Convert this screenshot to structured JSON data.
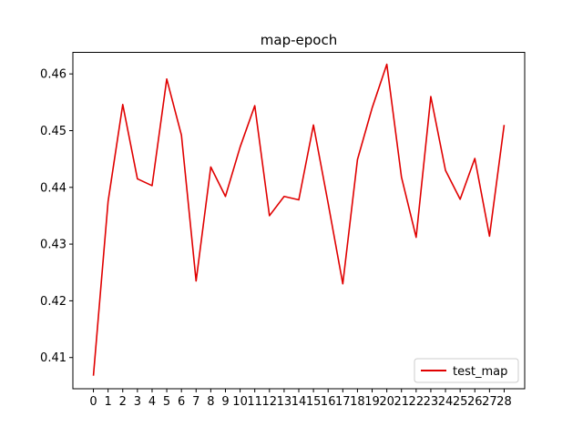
{
  "chart_data": {
    "type": "line",
    "title": "map-epoch",
    "xlabel": "",
    "ylabel": "",
    "x": [
      0,
      1,
      2,
      3,
      4,
      5,
      6,
      7,
      8,
      9,
      10,
      11,
      12,
      13,
      14,
      15,
      16,
      17,
      18,
      19,
      20,
      21,
      22,
      23,
      24,
      25,
      26,
      27,
      28
    ],
    "xlim": [
      -1.4,
      29.4
    ],
    "ylim": [
      0.4045,
      0.4638
    ],
    "yticks": [
      0.41,
      0.42,
      0.43,
      0.44,
      0.45,
      0.46
    ],
    "ytick_labels": [
      "0.41",
      "0.42",
      "0.43",
      "0.44",
      "0.45",
      "0.46"
    ],
    "grid": false,
    "legend_position": "lower-right",
    "series": [
      {
        "name": "test_map",
        "color": "#e00000",
        "values": [
          0.4068,
          0.4375,
          0.4546,
          0.4415,
          0.4403,
          0.4591,
          0.4492,
          0.4235,
          0.4436,
          0.4384,
          0.4471,
          0.4544,
          0.435,
          0.4384,
          0.4378,
          0.451,
          0.4372,
          0.423,
          0.4449,
          0.454,
          0.4617,
          0.4418,
          0.4312,
          0.456,
          0.443,
          0.4379,
          0.4451,
          0.4314,
          0.451
        ]
      }
    ]
  }
}
